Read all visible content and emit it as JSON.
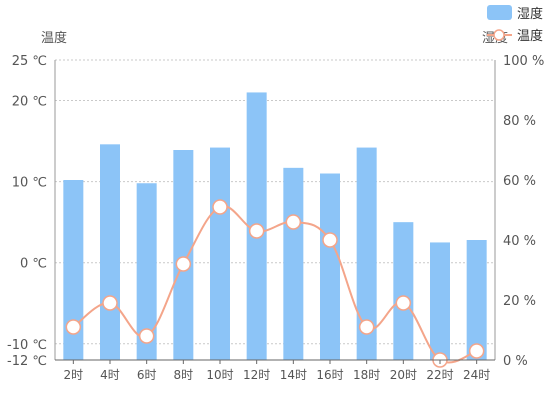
{
  "chart_data": {
    "type": "bar",
    "categories": [
      "2时",
      "4时",
      "6时",
      "8时",
      "10时",
      "12时",
      "14时",
      "16时",
      "18时",
      "20时",
      "22时",
      "24时"
    ],
    "left_axis": {
      "label": "温度",
      "ticks": [
        25,
        20,
        10,
        0,
        -10,
        -12
      ],
      "tick_labels": [
        "25 ℃",
        "20 ℃",
        "10 ℃",
        "0 ℃",
        "-10 ℃",
        "-12 ℃"
      ],
      "range": [
        -12,
        25
      ]
    },
    "right_axis": {
      "label": "湿度",
      "ticks": [
        100,
        80,
        60,
        40,
        20,
        0
      ],
      "tick_labels": [
        "100 %",
        "80 %",
        "60 %",
        "40 %",
        "20 %",
        "0 %"
      ],
      "range": [
        0,
        100
      ]
    },
    "series": [
      {
        "name": "湿度",
        "kind": "bar",
        "axis": "left",
        "values": [
          10.2,
          14.6,
          9.8,
          13.9,
          14.2,
          21.0,
          11.7,
          11.0,
          14.2,
          5.0,
          2.5,
          2.8
        ],
        "color": "#8cc4f7"
      },
      {
        "name": "温度",
        "kind": "line",
        "axis": "right",
        "values": [
          11,
          19,
          8,
          32,
          51,
          43,
          46,
          40,
          11,
          19,
          0,
          3
        ],
        "color": "#f4a58a"
      }
    ],
    "legend": {
      "position": "top-right",
      "items": [
        "湿度",
        "温度"
      ]
    },
    "grid": true
  }
}
